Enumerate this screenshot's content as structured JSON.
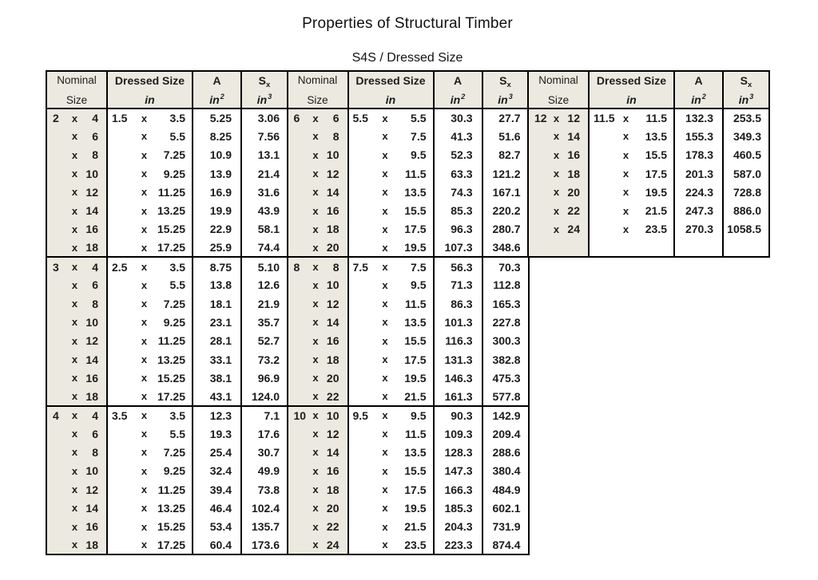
{
  "title": "Properties of Structural Timber",
  "subtitle": "S4S / Dressed Size",
  "colors": {
    "header_bg": "#ECE9E0",
    "border": "#000000",
    "text": "#1C1C1C",
    "page_bg": "#FFFFFF"
  },
  "columns": [
    {
      "name": "nominal",
      "line1": "Nominal",
      "line2": "Size",
      "bold": false,
      "italic_unit": false
    },
    {
      "name": "dressed",
      "line1": "Dressed Size",
      "line2": "in",
      "bold": true,
      "italic_unit": true
    },
    {
      "name": "area",
      "line1": "A",
      "line2": "in",
      "sup": "2",
      "bold": true,
      "italic_unit": true
    },
    {
      "name": "section-modulus",
      "line1": "S",
      "sub": "x",
      "line2": "in",
      "sup": "3",
      "bold": true,
      "italic_unit": true
    }
  ],
  "groups": [
    {
      "blocks": [
        {
          "rows": [
            [
              "2",
              "x",
              "4",
              "1.5",
              "x",
              "3.5",
              "5.25",
              "3.06"
            ],
            [
              "",
              "x",
              "6",
              "",
              "x",
              "5.5",
              "8.25",
              "7.56"
            ],
            [
              "",
              "x",
              "8",
              "",
              "x",
              "7.25",
              "10.9",
              "13.1"
            ],
            [
              "",
              "x",
              "10",
              "",
              "x",
              "9.25",
              "13.9",
              "21.4"
            ],
            [
              "",
              "x",
              "12",
              "",
              "x",
              "11.25",
              "16.9",
              "31.6"
            ],
            [
              "",
              "x",
              "14",
              "",
              "x",
              "13.25",
              "19.9",
              "43.9"
            ],
            [
              "",
              "x",
              "16",
              "",
              "x",
              "15.25",
              "22.9",
              "58.1"
            ],
            [
              "",
              "x",
              "18",
              "",
              "x",
              "17.25",
              "25.9",
              "74.4"
            ]
          ]
        },
        {
          "rows": [
            [
              "3",
              "x",
              "4",
              "2.5",
              "x",
              "3.5",
              "8.75",
              "5.10"
            ],
            [
              "",
              "x",
              "6",
              "",
              "x",
              "5.5",
              "13.8",
              "12.6"
            ],
            [
              "",
              "x",
              "8",
              "",
              "x",
              "7.25",
              "18.1",
              "21.9"
            ],
            [
              "",
              "x",
              "10",
              "",
              "x",
              "9.25",
              "23.1",
              "35.7"
            ],
            [
              "",
              "x",
              "12",
              "",
              "x",
              "11.25",
              "28.1",
              "52.7"
            ],
            [
              "",
              "x",
              "14",
              "",
              "x",
              "13.25",
              "33.1",
              "73.2"
            ],
            [
              "",
              "x",
              "16",
              "",
              "x",
              "15.25",
              "38.1",
              "96.9"
            ],
            [
              "",
              "x",
              "18",
              "",
              "x",
              "17.25",
              "43.1",
              "124.0"
            ]
          ]
        },
        {
          "rows": [
            [
              "4",
              "x",
              "4",
              "3.5",
              "x",
              "3.5",
              "12.3",
              "7.1"
            ],
            [
              "",
              "x",
              "6",
              "",
              "x",
              "5.5",
              "19.3",
              "17.6"
            ],
            [
              "",
              "x",
              "8",
              "",
              "x",
              "7.25",
              "25.4",
              "30.7"
            ],
            [
              "",
              "x",
              "10",
              "",
              "x",
              "9.25",
              "32.4",
              "49.9"
            ],
            [
              "",
              "x",
              "12",
              "",
              "x",
              "11.25",
              "39.4",
              "73.8"
            ],
            [
              "",
              "x",
              "14",
              "",
              "x",
              "13.25",
              "46.4",
              "102.4"
            ],
            [
              "",
              "x",
              "16",
              "",
              "x",
              "15.25",
              "53.4",
              "135.7"
            ],
            [
              "",
              "x",
              "18",
              "",
              "x",
              "17.25",
              "60.4",
              "173.6"
            ]
          ]
        }
      ]
    },
    {
      "blocks": [
        {
          "rows": [
            [
              "6",
              "x",
              "6",
              "5.5",
              "x",
              "5.5",
              "30.3",
              "27.7"
            ],
            [
              "",
              "x",
              "8",
              "",
              "x",
              "7.5",
              "41.3",
              "51.6"
            ],
            [
              "",
              "x",
              "10",
              "",
              "x",
              "9.5",
              "52.3",
              "82.7"
            ],
            [
              "",
              "x",
              "12",
              "",
              "x",
              "11.5",
              "63.3",
              "121.2"
            ],
            [
              "",
              "x",
              "14",
              "",
              "x",
              "13.5",
              "74.3",
              "167.1"
            ],
            [
              "",
              "x",
              "16",
              "",
              "x",
              "15.5",
              "85.3",
              "220.2"
            ],
            [
              "",
              "x",
              "18",
              "",
              "x",
              "17.5",
              "96.3",
              "280.7"
            ],
            [
              "",
              "x",
              "20",
              "",
              "x",
              "19.5",
              "107.3",
              "348.6"
            ]
          ]
        },
        {
          "rows": [
            [
              "8",
              "x",
              "8",
              "7.5",
              "x",
              "7.5",
              "56.3",
              "70.3"
            ],
            [
              "",
              "x",
              "10",
              "",
              "x",
              "9.5",
              "71.3",
              "112.8"
            ],
            [
              "",
              "x",
              "12",
              "",
              "x",
              "11.5",
              "86.3",
              "165.3"
            ],
            [
              "",
              "x",
              "14",
              "",
              "x",
              "13.5",
              "101.3",
              "227.8"
            ],
            [
              "",
              "x",
              "16",
              "",
              "x",
              "15.5",
              "116.3",
              "300.3"
            ],
            [
              "",
              "x",
              "18",
              "",
              "x",
              "17.5",
              "131.3",
              "382.8"
            ],
            [
              "",
              "x",
              "20",
              "",
              "x",
              "19.5",
              "146.3",
              "475.3"
            ],
            [
              "",
              "x",
              "22",
              "",
              "x",
              "21.5",
              "161.3",
              "577.8"
            ]
          ]
        },
        {
          "rows": [
            [
              "10",
              "x",
              "10",
              "9.5",
              "x",
              "9.5",
              "90.3",
              "142.9"
            ],
            [
              "",
              "x",
              "12",
              "",
              "x",
              "11.5",
              "109.3",
              "209.4"
            ],
            [
              "",
              "x",
              "14",
              "",
              "x",
              "13.5",
              "128.3",
              "288.6"
            ],
            [
              "",
              "x",
              "16",
              "",
              "x",
              "15.5",
              "147.3",
              "380.4"
            ],
            [
              "",
              "x",
              "18",
              "",
              "x",
              "17.5",
              "166.3",
              "484.9"
            ],
            [
              "",
              "x",
              "20",
              "",
              "x",
              "19.5",
              "185.3",
              "602.1"
            ],
            [
              "",
              "x",
              "22",
              "",
              "x",
              "21.5",
              "204.3",
              "731.9"
            ],
            [
              "",
              "x",
              "24",
              "",
              "x",
              "23.5",
              "223.3",
              "874.4"
            ]
          ]
        }
      ]
    },
    {
      "blocks": [
        {
          "pad_rows": 1,
          "rows": [
            [
              "12",
              "x",
              "12",
              "11.5",
              "x",
              "11.5",
              "132.3",
              "253.5"
            ],
            [
              "",
              "x",
              "14",
              "",
              "x",
              "13.5",
              "155.3",
              "349.3"
            ],
            [
              "",
              "x",
              "16",
              "",
              "x",
              "15.5",
              "178.3",
              "460.5"
            ],
            [
              "",
              "x",
              "18",
              "",
              "x",
              "17.5",
              "201.3",
              "587.0"
            ],
            [
              "",
              "x",
              "20",
              "",
              "x",
              "19.5",
              "224.3",
              "728.8"
            ],
            [
              "",
              "x",
              "22",
              "",
              "x",
              "21.5",
              "247.3",
              "886.0"
            ],
            [
              "",
              "x",
              "24",
              "",
              "x",
              "23.5",
              "270.3",
              "1058.5"
            ]
          ]
        }
      ]
    }
  ]
}
